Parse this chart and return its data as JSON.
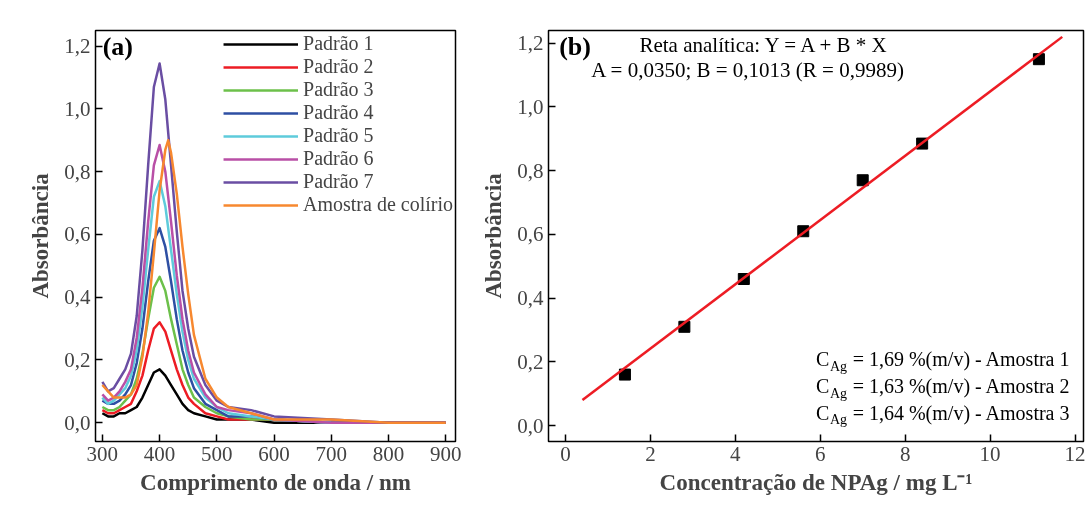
{
  "chart_data": [
    {
      "type": "line",
      "title": null,
      "xlabel": "Comprimento de onda / nm",
      "ylabel": "Absorbância",
      "x": [
        300,
        310,
        320,
        330,
        340,
        350,
        360,
        370,
        380,
        390,
        400,
        410,
        420,
        430,
        440,
        450,
        460,
        480,
        500,
        520,
        560,
        600,
        700,
        800,
        900
      ],
      "series": [
        {
          "name": "Padrão 1",
          "color": "#000000",
          "values": [
            0.03,
            0.02,
            0.02,
            0.03,
            0.03,
            0.04,
            0.05,
            0.08,
            0.12,
            0.16,
            0.17,
            0.15,
            0.12,
            0.09,
            0.06,
            0.04,
            0.03,
            0.02,
            0.01,
            0.01,
            0.01,
            0.0,
            0.0,
            0.0,
            0.0
          ]
        },
        {
          "name": "Padrão 2",
          "color": "#ed1c24",
          "x": [
            300,
            310,
            320,
            330,
            340,
            350,
            360,
            370,
            380,
            390,
            400,
            410,
            420,
            430,
            440,
            450,
            460,
            480,
            500,
            520,
            560,
            600,
            700
          ],
          "values": [
            0.04,
            0.03,
            0.03,
            0.04,
            0.05,
            0.06,
            0.1,
            0.15,
            0.23,
            0.3,
            0.32,
            0.29,
            0.23,
            0.17,
            0.12,
            0.08,
            0.06,
            0.03,
            0.02,
            0.01,
            0.01,
            0.01,
            0.0
          ]
        },
        {
          "name": "Padrão 3",
          "color": "#6cc04a",
          "x": [
            300,
            310,
            320,
            330,
            340,
            350,
            360,
            370,
            380,
            390,
            400,
            410,
            420,
            430,
            440,
            450,
            460,
            480,
            500,
            520,
            560,
            600,
            700
          ],
          "values": [
            0.05,
            0.04,
            0.04,
            0.05,
            0.07,
            0.09,
            0.14,
            0.22,
            0.33,
            0.43,
            0.465,
            0.42,
            0.33,
            0.25,
            0.17,
            0.12,
            0.08,
            0.05,
            0.03,
            0.02,
            0.01,
            0.01,
            0.0
          ]
        },
        {
          "name": "Padrão 4",
          "color": "#2e4fa3",
          "x": [
            300,
            310,
            320,
            330,
            340,
            350,
            360,
            370,
            380,
            390,
            400,
            410,
            420,
            430,
            440,
            450,
            460,
            480,
            500,
            520,
            560,
            600,
            700
          ],
          "values": [
            0.07,
            0.06,
            0.06,
            0.07,
            0.09,
            0.12,
            0.19,
            0.3,
            0.45,
            0.58,
            0.62,
            0.56,
            0.45,
            0.33,
            0.23,
            0.16,
            0.11,
            0.06,
            0.04,
            0.02,
            0.02,
            0.01,
            0.0
          ]
        },
        {
          "name": "Padrão 5",
          "color": "#5ecbdb",
          "x": [
            300,
            310,
            320,
            330,
            340,
            350,
            360,
            370,
            380,
            390,
            400,
            410,
            420,
            430,
            440,
            450,
            460,
            480,
            500,
            520,
            560,
            600,
            700
          ],
          "values": [
            0.08,
            0.06,
            0.07,
            0.09,
            0.11,
            0.15,
            0.23,
            0.37,
            0.55,
            0.72,
            0.77,
            0.69,
            0.55,
            0.41,
            0.29,
            0.2,
            0.14,
            0.08,
            0.05,
            0.03,
            0.02,
            0.01,
            0.0
          ]
        },
        {
          "name": "Padrão 6",
          "color": "#b94fa6",
          "values": [
            0.09,
            0.07,
            0.08,
            0.1,
            0.13,
            0.17,
            0.27,
            0.43,
            0.64,
            0.82,
            0.885,
            0.8,
            0.64,
            0.47,
            0.33,
            0.23,
            0.16,
            0.09,
            0.05,
            0.04,
            0.03,
            0.01,
            0.0,
            0.0,
            0.0
          ]
        },
        {
          "name": "Padrão 7",
          "color": "#6a4ea3",
          "values": [
            0.13,
            0.1,
            0.11,
            0.14,
            0.17,
            0.22,
            0.34,
            0.55,
            0.82,
            1.07,
            1.145,
            1.03,
            0.82,
            0.61,
            0.42,
            0.3,
            0.21,
            0.12,
            0.07,
            0.05,
            0.04,
            0.02,
            0.01,
            0.0,
            0.0
          ]
        },
        {
          "name": "Amostra de colírio",
          "color": "#f7882f",
          "x": [
            300,
            310,
            320,
            330,
            340,
            350,
            360,
            370,
            380,
            390,
            400,
            410,
            415,
            420,
            430,
            440,
            450,
            460,
            480,
            500,
            520,
            560,
            600,
            700,
            800,
            900
          ],
          "values": [
            0.12,
            0.1,
            0.08,
            0.08,
            0.08,
            0.09,
            0.12,
            0.21,
            0.35,
            0.54,
            0.74,
            0.87,
            0.9,
            0.86,
            0.73,
            0.56,
            0.41,
            0.28,
            0.14,
            0.08,
            0.05,
            0.03,
            0.01,
            0.01,
            0.0,
            0.0
          ]
        }
      ],
      "xlim": [
        288,
        917
      ],
      "ylim": [
        -0.06,
        1.25
      ],
      "xticks": [
        300,
        400,
        500,
        600,
        700,
        800,
        900
      ],
      "yticks": [
        {
          "value": 0.0,
          "label": "0,0"
        },
        {
          "value": 0.2,
          "label": "0,2"
        },
        {
          "value": 0.4,
          "label": "0,4"
        },
        {
          "value": 0.6,
          "label": "0,6"
        },
        {
          "value": 0.8,
          "label": "0,8"
        },
        {
          "value": 1.0,
          "label": "1,0"
        },
        {
          "value": 1.2,
          "label": "1,2"
        }
      ],
      "legend": "top right",
      "annotations": [
        "(a)"
      ]
    },
    {
      "type": "scatter",
      "xlabel": "Concentração de NPAg / mg L⁻¹",
      "ylabel": "Absorbância",
      "series": [
        {
          "type": "scatter",
          "marker": "square",
          "color": "#000000",
          "x": [
            1.4,
            2.8,
            4.2,
            5.6,
            7.0,
            8.4,
            11.15
          ],
          "values": [
            0.16,
            0.31,
            0.46,
            0.61,
            0.77,
            0.885,
            1.15
          ]
        },
        {
          "type": "line",
          "color": "#ed1c24",
          "x": [
            0.4,
            11.7
          ],
          "values": [
            0.08,
            1.22
          ]
        }
      ],
      "xlim": [
        -0.4,
        12.2
      ],
      "ylim": [
        -0.05,
        1.24
      ],
      "xticks": [
        0,
        2,
        4,
        6,
        8,
        10,
        12
      ],
      "yticks": [
        {
          "value": 0.0,
          "label": "0,0"
        },
        {
          "value": 0.2,
          "label": "0,2"
        },
        {
          "value": 0.4,
          "label": "0,4"
        },
        {
          "value": 0.6,
          "label": "0,6"
        },
        {
          "value": 0.8,
          "label": "0,8"
        },
        {
          "value": 1.0,
          "label": "1,0"
        },
        {
          "value": 1.2,
          "label": "1,2"
        }
      ],
      "annotations": [
        "(b)",
        "Reta analítica: Y = A + B * X",
        "A = 0,0350; B = 0,1013 (R = 0,9989)",
        "C$_{Ag}$ = 1,69 %(m/v) - Amostra 1",
        "C$_{Ag}$ = 1,63 %(m/v) - Amostra 2",
        "C$_{Ag}$ = 1,64 %(m/v) - Amostra 3"
      ]
    }
  ]
}
